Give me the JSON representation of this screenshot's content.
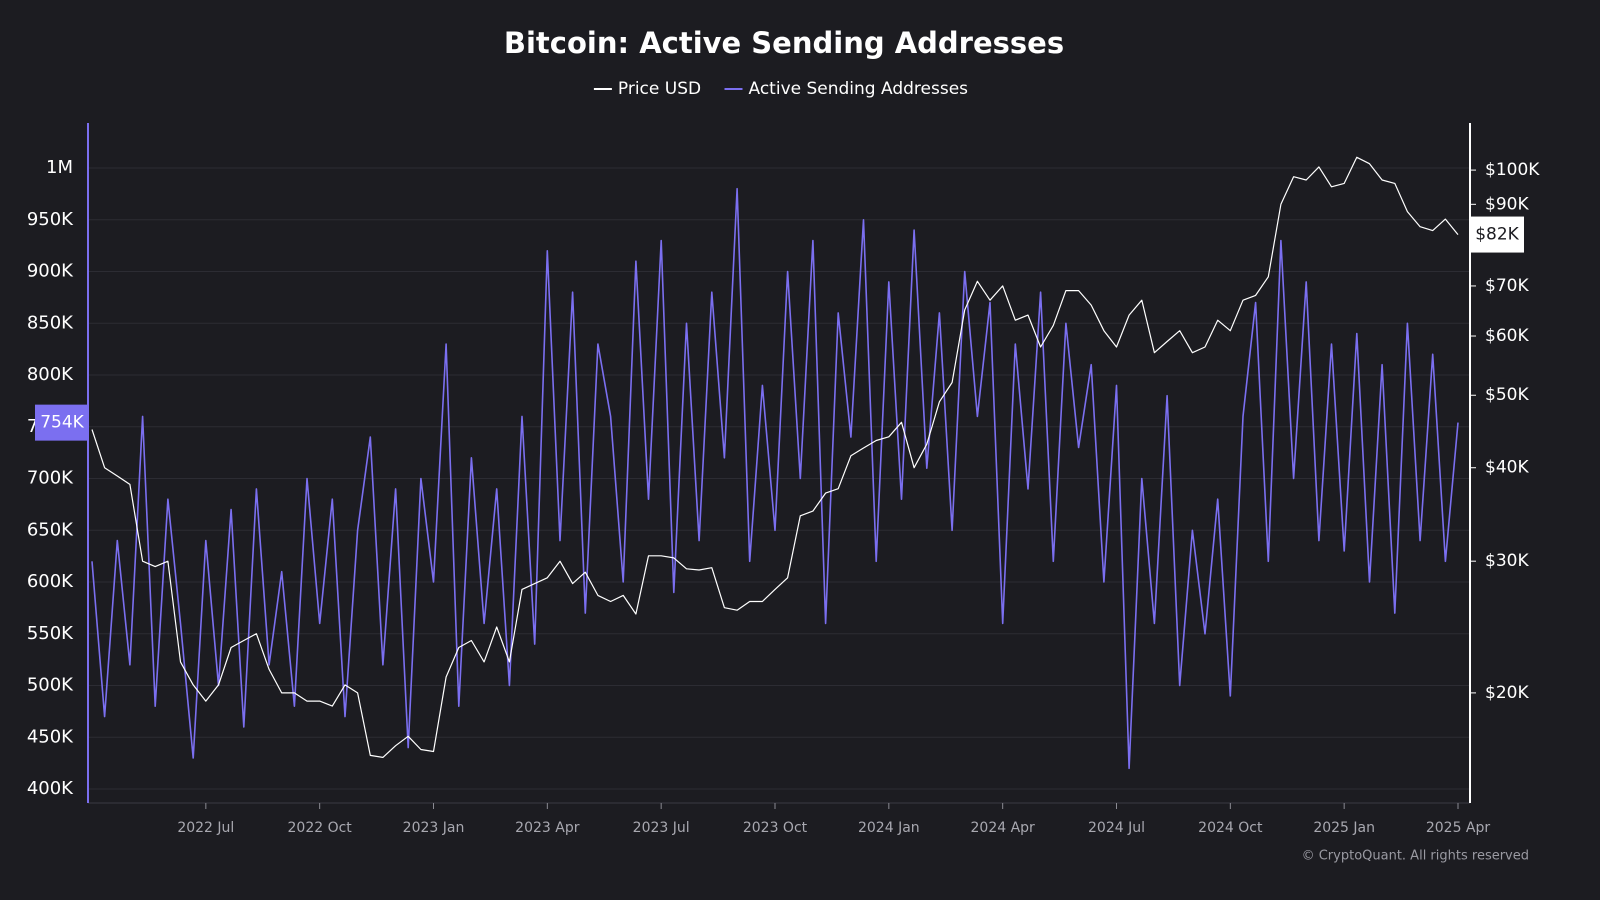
{
  "chart_data": {
    "type": "line",
    "title": "Bitcoin: Active Sending Addresses",
    "footer": "© CryptoQuant. All rights reserved",
    "categories": [
      null,
      null,
      null,
      null,
      null,
      null,
      null,
      null,
      null,
      "2022 Jul",
      null,
      null,
      null,
      null,
      null,
      null,
      null,
      null,
      "2022 Oct",
      null,
      null,
      null,
      null,
      null,
      null,
      null,
      null,
      "2023 Jan",
      null,
      null,
      null,
      null,
      null,
      null,
      null,
      null,
      "2023 Apr",
      null,
      null,
      null,
      null,
      null,
      null,
      null,
      null,
      "2023 Jul",
      null,
      null,
      null,
      null,
      null,
      null,
      null,
      null,
      "2023 Oct",
      null,
      null,
      null,
      null,
      null,
      null,
      null,
      null,
      "2024 Jan",
      null,
      null,
      null,
      null,
      null,
      null,
      null,
      null,
      "2024 Apr",
      null,
      null,
      null,
      null,
      null,
      null,
      null,
      null,
      "2024 Jul",
      null,
      null,
      null,
      null,
      null,
      null,
      null,
      null,
      "2024 Oct",
      null,
      null,
      null,
      null,
      null,
      null,
      null,
      null,
      "2025 Jan",
      null,
      null,
      null,
      null,
      null,
      null,
      null,
      null,
      "2025 Apr"
    ],
    "series": [
      {
        "name": "Price USD",
        "color": "#ffffff",
        "axis": "y2",
        "last_label": "$82K",
        "values": [
          45000,
          40000,
          39000,
          38000,
          30000,
          29500,
          30000,
          22000,
          20500,
          19500,
          20500,
          23000,
          23500,
          24000,
          21500,
          20000,
          20000,
          19500,
          19500,
          19200,
          20500,
          20000,
          16500,
          16400,
          17000,
          17500,
          16800,
          16700,
          21000,
          23000,
          23500,
          22000,
          24500,
          22000,
          27500,
          28000,
          28500,
          30000,
          28000,
          29000,
          27000,
          26500,
          27000,
          25500,
          30500,
          30500,
          30300,
          29300,
          29200,
          29400,
          26000,
          25800,
          26500,
          26500,
          27500,
          28500,
          34500,
          35000,
          37000,
          37500,
          41500,
          42500,
          43500,
          44000,
          46000,
          40000,
          43000,
          49000,
          52000,
          65000,
          71000,
          67000,
          70000,
          63000,
          64000,
          58000,
          62000,
          69000,
          69000,
          66000,
          61000,
          58000,
          64000,
          67000,
          57000,
          59000,
          61000,
          57000,
          58000,
          63000,
          61000,
          67000,
          68000,
          72000,
          90000,
          98000,
          97000,
          101000,
          95000,
          96000,
          104000,
          102000,
          97000,
          96000,
          88000,
          84000,
          83000,
          86000,
          82000
        ]
      },
      {
        "name": "Active Sending Addresses",
        "color": "#7b6ff0",
        "last_label": "754K",
        "values": [
          620000,
          470000,
          640000,
          520000,
          760000,
          480000,
          680000,
          560000,
          430000,
          640000,
          500000,
          670000,
          460000,
          690000,
          520000,
          610000,
          480000,
          700000,
          560000,
          680000,
          470000,
          650000,
          740000,
          520000,
          690000,
          440000,
          700000,
          600000,
          830000,
          480000,
          720000,
          560000,
          690000,
          500000,
          760000,
          540000,
          920000,
          640000,
          880000,
          570000,
          830000,
          760000,
          600000,
          910000,
          680000,
          930000,
          590000,
          850000,
          640000,
          880000,
          720000,
          980000,
          620000,
          790000,
          650000,
          900000,
          700000,
          930000,
          560000,
          860000,
          740000,
          950000,
          620000,
          890000,
          680000,
          940000,
          710000,
          860000,
          650000,
          900000,
          760000,
          870000,
          560000,
          830000,
          690000,
          880000,
          620000,
          850000,
          730000,
          810000,
          600000,
          790000,
          420000,
          700000,
          560000,
          780000,
          500000,
          650000,
          550000,
          680000,
          490000,
          760000,
          870000,
          620000,
          930000,
          700000,
          890000,
          640000,
          830000,
          630000,
          840000,
          600000,
          810000,
          570000,
          850000,
          640000,
          820000,
          620000,
          754000
        ]
      }
    ],
    "ylim": [
      386500,
      1043500
    ],
    "yticks": [
      {
        "value": 400000,
        "label": "400K"
      },
      {
        "value": 450000,
        "label": "450K"
      },
      {
        "value": 500000,
        "label": "500K"
      },
      {
        "value": 550000,
        "label": "550K"
      },
      {
        "value": 600000,
        "label": "600K"
      },
      {
        "value": 650000,
        "label": "650K"
      },
      {
        "value": 700000,
        "label": "700K"
      },
      {
        "value": 750000,
        "label": "750K"
      },
      {
        "value": 800000,
        "label": "800K"
      },
      {
        "value": 850000,
        "label": "850K"
      },
      {
        "value": 900000,
        "label": "900K"
      },
      {
        "value": 950000,
        "label": "950K"
      },
      {
        "value": 1000000,
        "label": "1M"
      }
    ],
    "y2lim": [
      14250,
      115600
    ],
    "y2scale": "log",
    "y2ticks": [
      {
        "value": 20000,
        "label": "$20K"
      },
      {
        "value": 30000,
        "label": "$30K"
      },
      {
        "value": 40000,
        "label": "$40K"
      },
      {
        "value": 50000,
        "label": "$50K"
      },
      {
        "value": 60000,
        "label": "$60K"
      },
      {
        "value": 70000,
        "label": "$70K"
      },
      {
        "value": 90000,
        "label": "$90K"
      },
      {
        "value": 100000,
        "label": "$100K"
      }
    ],
    "grid": true,
    "legend": "top"
  }
}
